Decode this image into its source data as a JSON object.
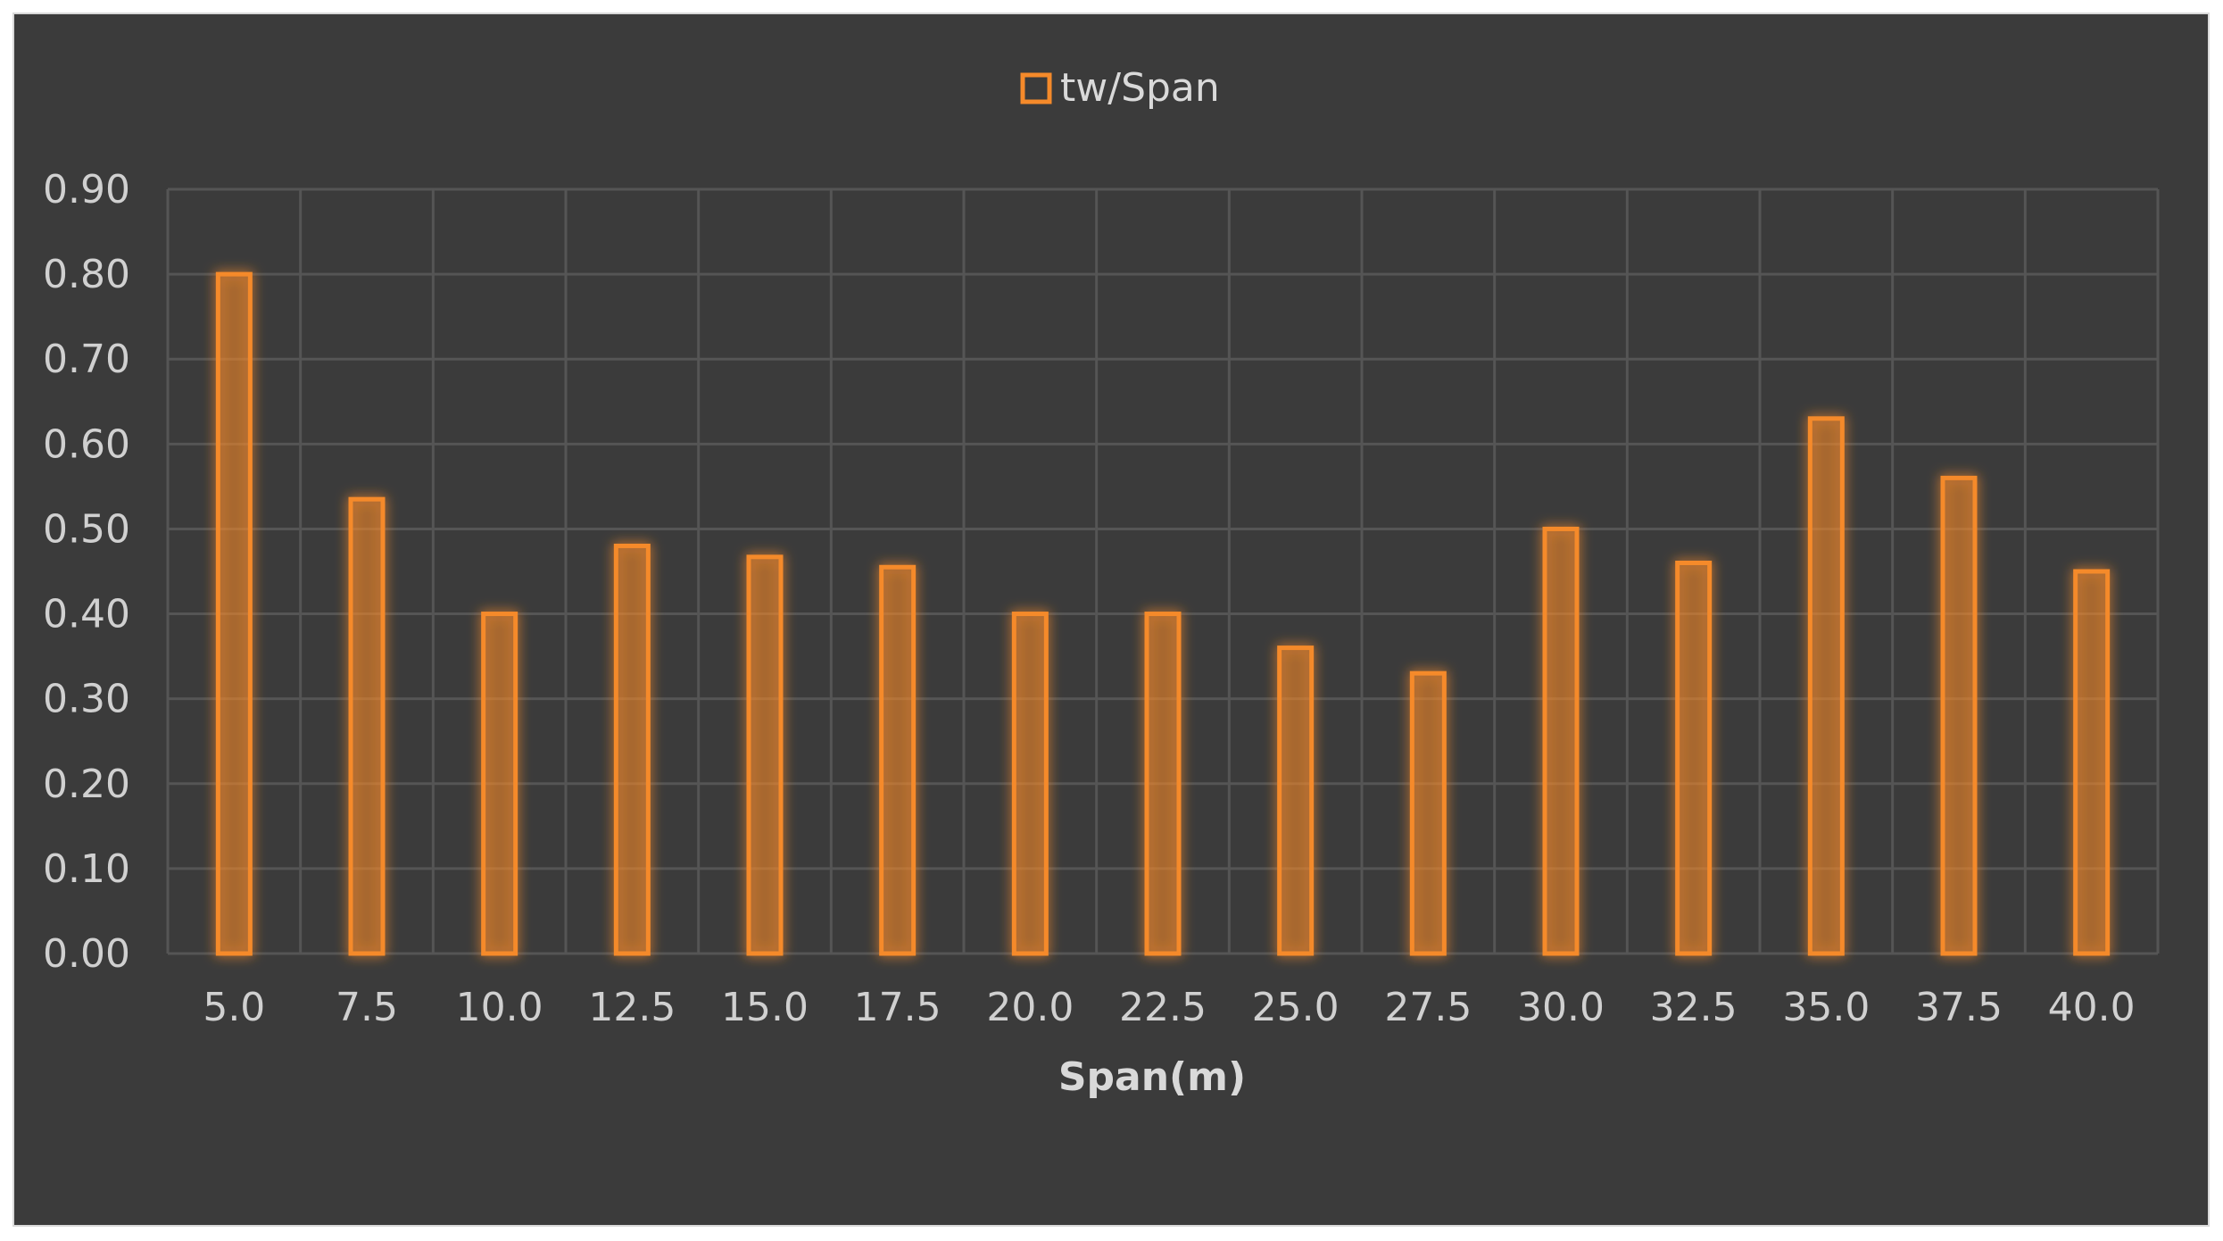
{
  "chart_data": {
    "type": "bar",
    "categories": [
      "5.0",
      "7.5",
      "10.0",
      "12.5",
      "15.0",
      "17.5",
      "20.0",
      "22.5",
      "25.0",
      "27.5",
      "30.0",
      "32.5",
      "35.0",
      "37.5",
      "40.0"
    ],
    "series": [
      {
        "name": "tw/Span",
        "values": [
          0.8,
          0.535,
          0.4,
          0.48,
          0.467,
          0.455,
          0.4,
          0.4,
          0.36,
          0.33,
          0.5,
          0.46,
          0.63,
          0.56,
          0.45
        ],
        "color": "#f58a2a"
      }
    ],
    "xlabel": "Span(m)",
    "ylabel": "",
    "ylim": [
      0,
      0.9
    ],
    "yticks": [
      "0.00",
      "0.10",
      "0.20",
      "0.30",
      "0.40",
      "0.50",
      "0.60",
      "0.70",
      "0.80",
      "0.90"
    ],
    "grid": true,
    "legend_position": "top",
    "background": "#3b3b3b",
    "gridline_color": "#555555"
  }
}
